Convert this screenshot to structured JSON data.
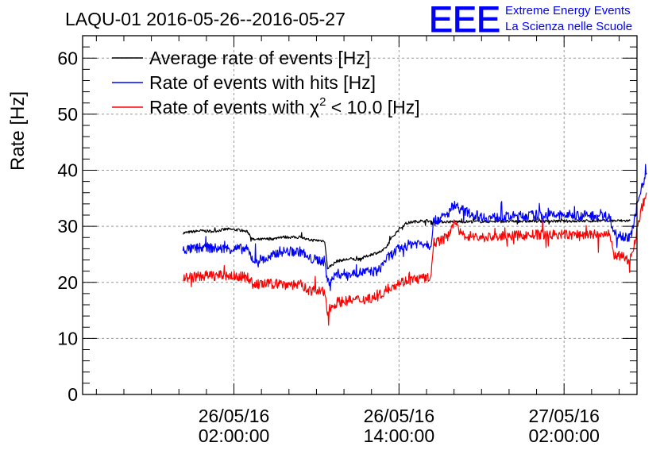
{
  "chart_data": {
    "type": "line",
    "title": "LAQU-01 2016-05-26--2016-05-27",
    "ylabel": "Rate [Hz]",
    "xlabel": "",
    "ylim": [
      0,
      64
    ],
    "yticks": [
      0,
      10,
      20,
      30,
      40,
      50,
      60
    ],
    "yticklabels": [
      "0",
      "10",
      "20",
      "30",
      "40",
      "50",
      "60"
    ],
    "xlim_hours": [
      -9.0,
      31.3
    ],
    "xticks": [
      {
        "hour": 2.0,
        "date": "26/05/16",
        "time": "02:00:00"
      },
      {
        "hour": 14.0,
        "date": "26/05/16",
        "time": "14:00:00"
      },
      {
        "hour": 26.0,
        "date": "27/05/16",
        "time": "02:00:00"
      }
    ],
    "x_unit": "hours since 2016-05-26 00:00",
    "grid": true,
    "legend_position": "top-left",
    "series": [
      {
        "name": "Average rate of events [Hz]",
        "color": "#000000",
        "noise": 0.25,
        "points": [
          [
            -1.7,
            28.8
          ],
          [
            -0.5,
            29.2
          ],
          [
            0.5,
            29.1
          ],
          [
            1.5,
            29.5
          ],
          [
            2.5,
            29.3
          ],
          [
            3.0,
            29.0
          ],
          [
            3.4,
            27.6
          ],
          [
            5.0,
            27.8
          ],
          [
            5.3,
            28.1
          ],
          [
            7.0,
            28.0
          ],
          [
            7.3,
            27.6
          ],
          [
            8.6,
            27.4
          ],
          [
            8.8,
            22.5
          ],
          [
            9.5,
            23.8
          ],
          [
            10.5,
            24.2
          ],
          [
            11.0,
            24.0
          ],
          [
            12.0,
            25.0
          ],
          [
            12.7,
            25.5
          ],
          [
            13.0,
            26.0
          ],
          [
            13.5,
            28.0
          ],
          [
            14.0,
            29.5
          ],
          [
            14.5,
            30.5
          ],
          [
            15.0,
            30.8
          ],
          [
            16.0,
            31.0
          ],
          [
            16.5,
            30.8
          ],
          [
            30.8,
            31.0
          ]
        ]
      },
      {
        "name": "Rate of events with hits [Hz]",
        "color": "#0000ff",
        "noise": 0.9,
        "points": [
          [
            -1.7,
            25.8
          ],
          [
            0,
            26.2
          ],
          [
            1.0,
            26.0
          ],
          [
            2.5,
            26.0
          ],
          [
            3.0,
            25.8
          ],
          [
            3.4,
            24.0
          ],
          [
            4.5,
            24.2
          ],
          [
            5.3,
            25.5
          ],
          [
            7.0,
            25.5
          ],
          [
            7.3,
            24.3
          ],
          [
            8.6,
            23.8
          ],
          [
            8.8,
            20.0
          ],
          [
            9.5,
            21.5
          ],
          [
            10.5,
            21.5
          ],
          [
            11.3,
            21.8
          ],
          [
            12.5,
            22.0
          ],
          [
            13.0,
            24.0
          ],
          [
            14.0,
            26.0
          ],
          [
            15.0,
            27.0
          ],
          [
            16.0,
            27.0
          ],
          [
            16.3,
            26.5
          ],
          [
            16.5,
            30.8
          ],
          [
            17.5,
            32.0
          ],
          [
            18.0,
            34.0
          ],
          [
            18.5,
            33.0
          ],
          [
            19.5,
            32.0
          ],
          [
            20.5,
            31.5
          ],
          [
            24.0,
            32.0
          ],
          [
            27.0,
            32.0
          ],
          [
            29.3,
            31.8
          ],
          [
            29.6,
            29.0
          ],
          [
            30.8,
            27.8
          ],
          [
            31.2,
            32.0
          ],
          [
            31.6,
            37.0
          ],
          [
            32.0,
            39.5
          ]
        ]
      },
      {
        "name": "Rate of events with χ² < 10.0 [Hz]",
        "color": "#ff0000",
        "noise": 0.9,
        "points": [
          [
            -1.7,
            20.8
          ],
          [
            0,
            21.2
          ],
          [
            1.5,
            21.2
          ],
          [
            2.5,
            21.0
          ],
          [
            3.0,
            21.0
          ],
          [
            3.4,
            19.6
          ],
          [
            5.3,
            19.8
          ],
          [
            7.0,
            19.5
          ],
          [
            7.3,
            18.7
          ],
          [
            8.6,
            18.2
          ],
          [
            8.8,
            15.0
          ],
          [
            9.5,
            16.5
          ],
          [
            10.5,
            16.8
          ],
          [
            11.5,
            17.0
          ],
          [
            12.5,
            17.5
          ],
          [
            13.0,
            18.5
          ],
          [
            14.0,
            20.0
          ],
          [
            15.0,
            20.5
          ],
          [
            16.0,
            20.8
          ],
          [
            16.3,
            20.5
          ],
          [
            16.5,
            27.0
          ],
          [
            17.5,
            28.0
          ],
          [
            18.0,
            31.0
          ],
          [
            18.5,
            28.5
          ],
          [
            20.0,
            28.0
          ],
          [
            24.0,
            28.5
          ],
          [
            27.0,
            28.5
          ],
          [
            29.3,
            28.5
          ],
          [
            29.6,
            25.0
          ],
          [
            30.8,
            24.0
          ],
          [
            31.2,
            28.0
          ],
          [
            31.6,
            33.0
          ],
          [
            32.0,
            36.0
          ]
        ]
      }
    ],
    "legend_entries": [
      {
        "text": "Average rate of events [Hz]",
        "color": "#000000"
      },
      {
        "text": "Rate of events with hits [Hz]",
        "color": "#0000ff"
      },
      {
        "text_before": "Rate of events with χ",
        "sup": "2",
        "text_after": " < 10.0 [Hz]",
        "color": "#ff0000"
      }
    ]
  },
  "logo": {
    "mark": "EEE",
    "line1": "Extreme Energy Events",
    "line2": "La Scienza nelle Scuole",
    "color": "#0000ff"
  }
}
